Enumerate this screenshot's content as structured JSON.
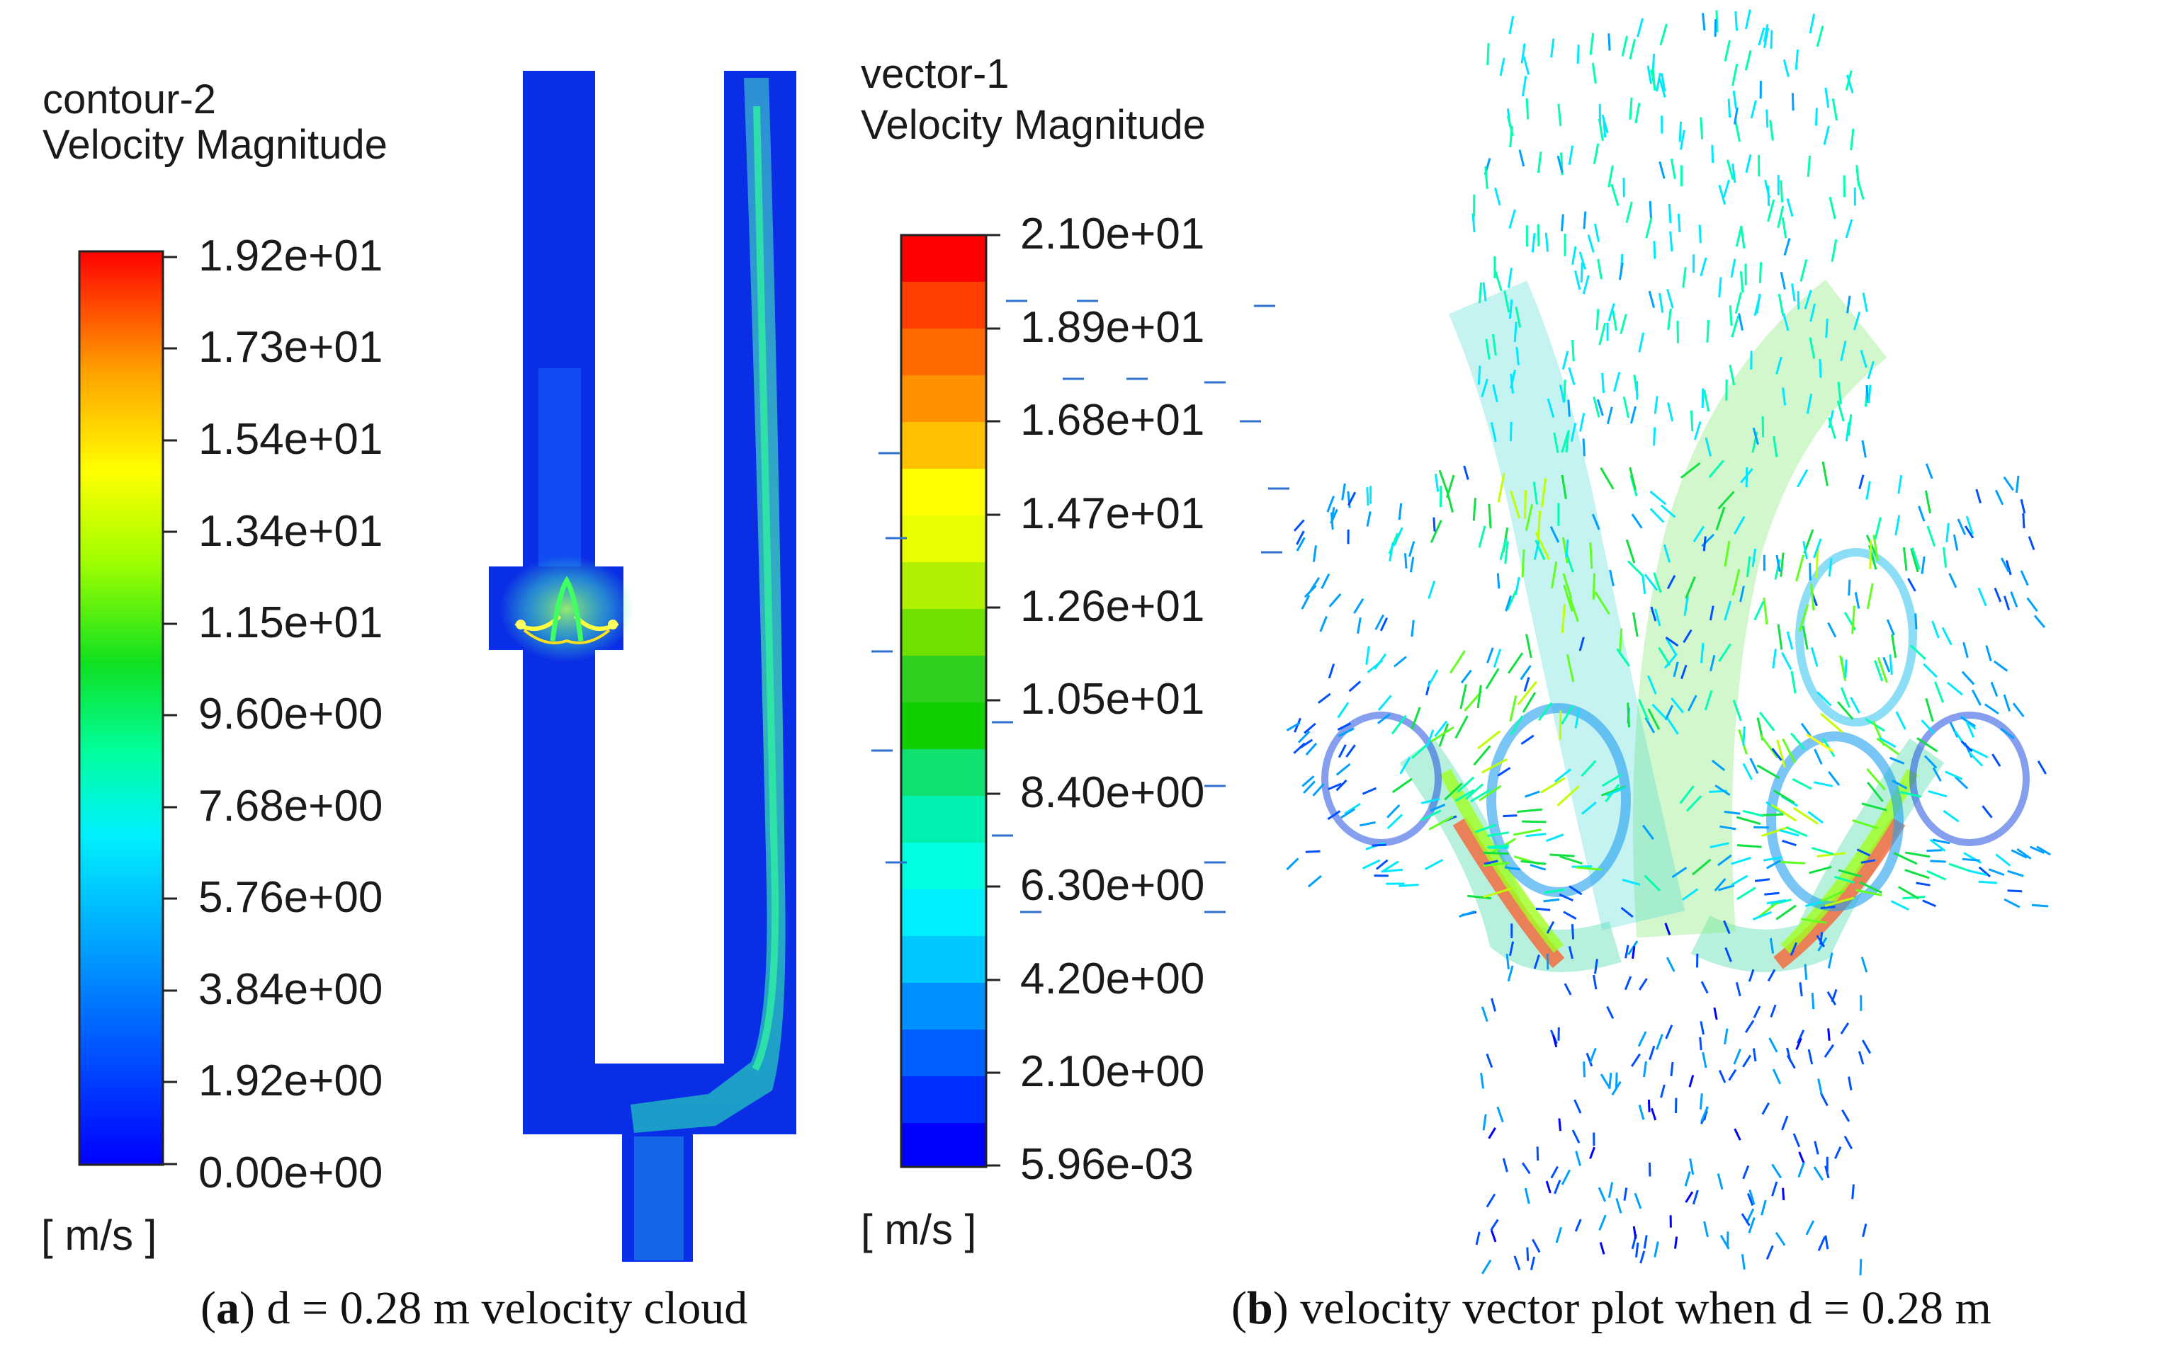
{
  "panel_a": {
    "legend": {
      "title_line1": "contour-2",
      "title_line2": "Velocity Magnitude",
      "ticks": [
        "1.92e+01",
        "1.73e+01",
        "1.54e+01",
        "1.34e+01",
        "1.15e+01",
        "9.60e+00",
        "7.68e+00",
        "5.76e+00",
        "3.84e+00",
        "1.92e+00",
        "0.00e+00"
      ],
      "unit": "[ m/s ]"
    },
    "caption": {
      "letter": "a",
      "text": "d = 0.28 m velocity cloud"
    }
  },
  "panel_b": {
    "legend": {
      "title_line1": "vector-1",
      "title_line2": "Velocity Magnitude",
      "ticks": [
        "2.10e+01",
        "1.89e+01",
        "1.68e+01",
        "1.47e+01",
        "1.26e+01",
        "1.05e+01",
        "8.40e+00",
        "6.30e+00",
        "4.20e+00",
        "2.10e+00",
        "5.96e-03"
      ],
      "unit": "[ m/s ]"
    },
    "caption": {
      "letter": "b",
      "text": "velocity vector plot when d = 0.28 m"
    }
  },
  "colors": {
    "scale": [
      "#0000ff",
      "#0050ff",
      "#00a0ff",
      "#00e8ff",
      "#00ffb0",
      "#10e040",
      "#60ff20",
      "#c0ff00",
      "#ffff00",
      "#ffc000",
      "#ff7000",
      "#ff0000"
    ],
    "domain_blue": "#0a2ee6"
  }
}
